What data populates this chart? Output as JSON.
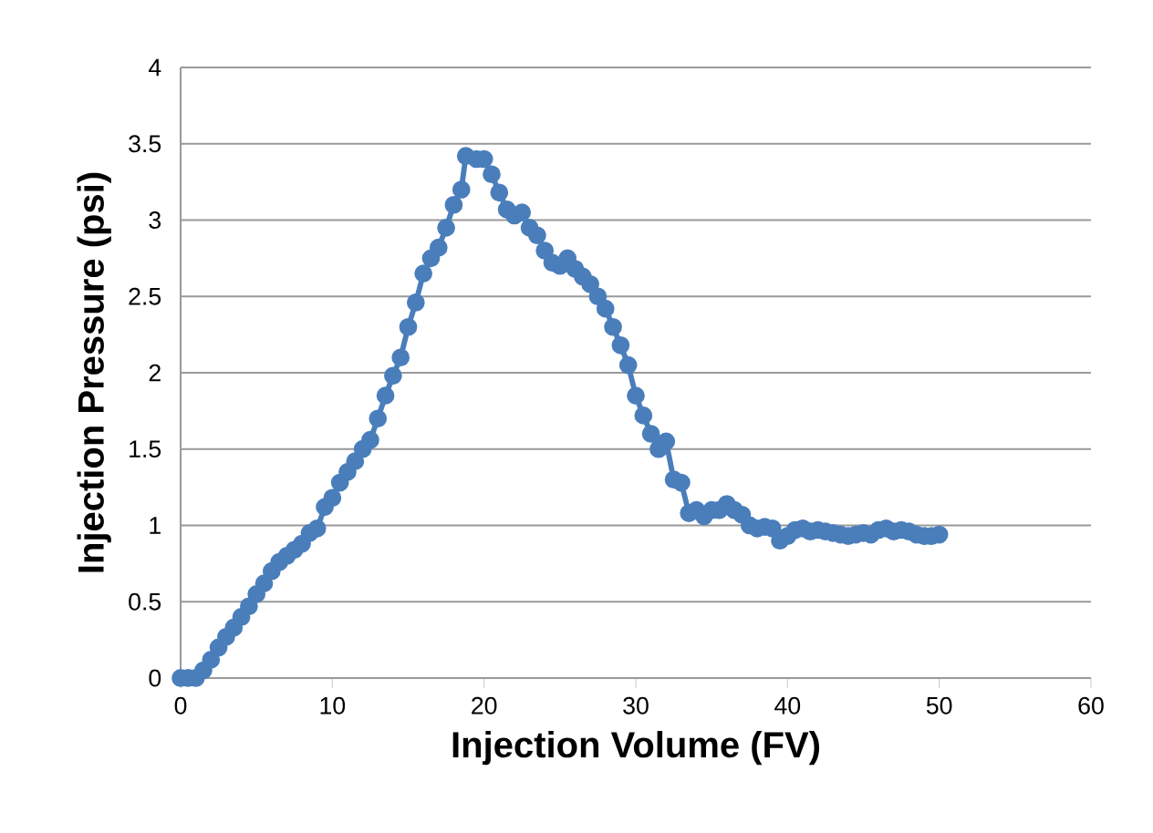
{
  "chart_data": {
    "type": "line",
    "xlabel": "Injection Volume (FV)",
    "ylabel": "Injection Pressure (psi)",
    "xlim": [
      0,
      60
    ],
    "xticks": [
      0,
      10,
      20,
      30,
      40,
      50,
      60
    ],
    "ylim": [
      0,
      4
    ],
    "yticks": [
      0,
      0.5,
      1,
      1.5,
      2,
      2.5,
      3,
      3.5,
      4
    ],
    "grid": "y",
    "marker": "circle",
    "series": [
      {
        "color": "#4a7ebb",
        "x": [
          0,
          0.5,
          1,
          1.5,
          2,
          2.5,
          3,
          3.5,
          4,
          4.5,
          5,
          5.5,
          6,
          6.5,
          7,
          7.5,
          8,
          8.5,
          9,
          9.5,
          10,
          10.5,
          11,
          11.5,
          12,
          12.5,
          13,
          13.5,
          14,
          14.5,
          15,
          15.5,
          16,
          16.5,
          17,
          17.5,
          18,
          18.5,
          18.8,
          19.5,
          20,
          20.5,
          21,
          21.5,
          22,
          22.5,
          23,
          23.5,
          24,
          24.5,
          25,
          25.5,
          26,
          26.5,
          27,
          27.5,
          28,
          28.5,
          29,
          29.5,
          30,
          30.5,
          31,
          31.5,
          32,
          32.5,
          33,
          33.5,
          34,
          34.5,
          35,
          35.5,
          36,
          36.5,
          37,
          37.5,
          38,
          38.5,
          39,
          39.5,
          40,
          40.5,
          41,
          41.5,
          42,
          42.5,
          43,
          43.5,
          44,
          44.5,
          45,
          45.5,
          46,
          46.5,
          47,
          47.5,
          48,
          48.5,
          49,
          49.5,
          50
        ],
        "values": [
          0,
          0,
          0,
          0.05,
          0.12,
          0.2,
          0.27,
          0.33,
          0.4,
          0.47,
          0.55,
          0.62,
          0.7,
          0.76,
          0.8,
          0.84,
          0.88,
          0.95,
          0.98,
          1.12,
          1.18,
          1.28,
          1.35,
          1.42,
          1.5,
          1.56,
          1.7,
          1.85,
          1.98,
          2.1,
          2.3,
          2.46,
          2.65,
          2.75,
          2.82,
          2.95,
          3.1,
          3.2,
          3.42,
          3.4,
          3.4,
          3.3,
          3.18,
          3.07,
          3.03,
          3.05,
          2.95,
          2.9,
          2.8,
          2.72,
          2.7,
          2.75,
          2.68,
          2.63,
          2.58,
          2.5,
          2.42,
          2.3,
          2.18,
          2.05,
          1.85,
          1.72,
          1.6,
          1.5,
          1.55,
          1.3,
          1.28,
          1.08,
          1.1,
          1.06,
          1.1,
          1.1,
          1.14,
          1.1,
          1.07,
          1.0,
          0.98,
          0.99,
          0.98,
          0.9,
          0.93,
          0.97,
          0.98,
          0.96,
          0.97,
          0.96,
          0.95,
          0.94,
          0.93,
          0.94,
          0.95,
          0.94,
          0.97,
          0.98,
          0.96,
          0.97,
          0.96,
          0.94,
          0.93,
          0.93,
          0.94
        ]
      }
    ]
  }
}
